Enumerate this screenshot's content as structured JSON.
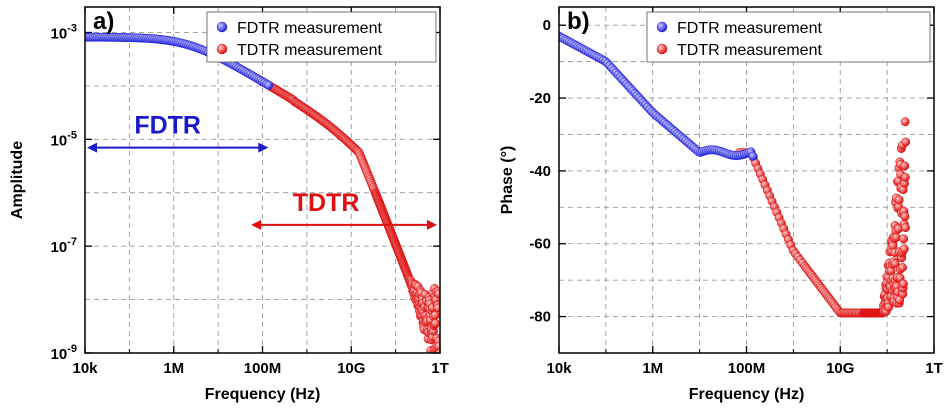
{
  "chart_data": [
    {
      "type": "scatter",
      "panel_label": "a)",
      "xlabel": "Frequency (Hz)",
      "ylabel": "Amplitude",
      "xscale": "log",
      "yscale": "log",
      "xlim": [
        10000,
        1000000000000
      ],
      "ylim": [
        1e-09,
        0.003
      ],
      "x_ticks": [
        10000,
        1000000,
        100000000,
        10000000000,
        1000000000000
      ],
      "x_tick_labels": [
        "10k",
        "1M",
        "100M",
        "10G",
        "1T"
      ],
      "y_ticks": [
        1e-09,
        1e-07,
        1e-05,
        0.001
      ],
      "y_tick_labels": [
        {
          "base": "10",
          "exp": "-9"
        },
        {
          "base": "10",
          "exp": "-7"
        },
        {
          "base": "10",
          "exp": "-5"
        },
        {
          "base": "10",
          "exp": "-3"
        }
      ],
      "grid": true,
      "legend_position": "top-right",
      "series": [
        {
          "name": "FDTR measurement",
          "color": "#2222dd",
          "x_range": [
            10000,
            150000000
          ],
          "points": [
            [
              10000,
              0.00082
            ],
            [
              100000,
              0.00074
            ],
            [
              1000000,
              0.00055
            ],
            [
              10000000,
              0.00028
            ],
            [
              100000000,
              0.000115
            ],
            [
              150000000,
              0.0001
            ]
          ]
        },
        {
          "name": "TDTR measurement",
          "color": "#dd1111",
          "x_range": [
            80000000,
            1000000000000
          ],
          "points": [
            [
              80000000,
              0.00012
            ],
            [
              1000000000,
              1.5e-05
            ],
            [
              10000000000,
              1.3e-06
            ],
            [
              30000000000,
              3e-07
            ],
            [
              100000000000,
              2e-08
            ],
            [
              1000000000000,
              3e-09
            ]
          ]
        }
      ],
      "annotations": [
        {
          "text": "FDTR",
          "color": "#1a1acc",
          "arrow_x_range": [
            10000,
            150000000
          ],
          "y": 7e-06
        },
        {
          "text": "TDTR",
          "color": "#dd1111",
          "arrow_x_range": [
            50000000,
            1000000000000
          ],
          "y": 2.5e-07
        }
      ]
    },
    {
      "type": "scatter",
      "panel_label": "b)",
      "xlabel": "Frequency (Hz)",
      "ylabel": "Phase (°)",
      "xscale": "log",
      "yscale": "linear",
      "xlim": [
        10000,
        1000000000000
      ],
      "ylim": [
        -90,
        5
      ],
      "x_ticks": [
        10000,
        1000000,
        100000000,
        10000000000,
        1000000000000
      ],
      "x_tick_labels": [
        "10k",
        "1M",
        "100M",
        "10G",
        "1T"
      ],
      "y_ticks": [
        -80,
        -60,
        -40,
        -20,
        0
      ],
      "y_tick_labels": [
        "-80",
        "-60",
        "-40",
        "-20",
        "0"
      ],
      "grid": true,
      "legend_position": "top-right",
      "series": [
        {
          "name": "FDTR measurement",
          "color": "#2222dd",
          "x_range": [
            10000,
            150000000
          ],
          "points": [
            [
              10000,
              -3
            ],
            [
              100000,
              -10
            ],
            [
              1000000,
              -24
            ],
            [
              10000000,
              -35
            ],
            [
              50000000,
              -35
            ],
            [
              100000000,
              -35
            ],
            [
              150000000,
              -39
            ]
          ]
        },
        {
          "name": "TDTR measurement",
          "color": "#dd1111",
          "x_range": [
            70000000,
            250000000000
          ],
          "points": [
            [
              70000000,
              -35
            ],
            [
              150000000,
              -41
            ],
            [
              500000000,
              -52
            ],
            [
              1000000000,
              -62
            ],
            [
              3000000000,
              -73
            ],
            [
              10000000000,
              -79
            ],
            [
              30000000000,
              -79
            ],
            [
              60000000000,
              -75
            ],
            [
              100000000000,
              -80
            ],
            [
              250000000000,
              4
            ]
          ]
        }
      ]
    }
  ]
}
